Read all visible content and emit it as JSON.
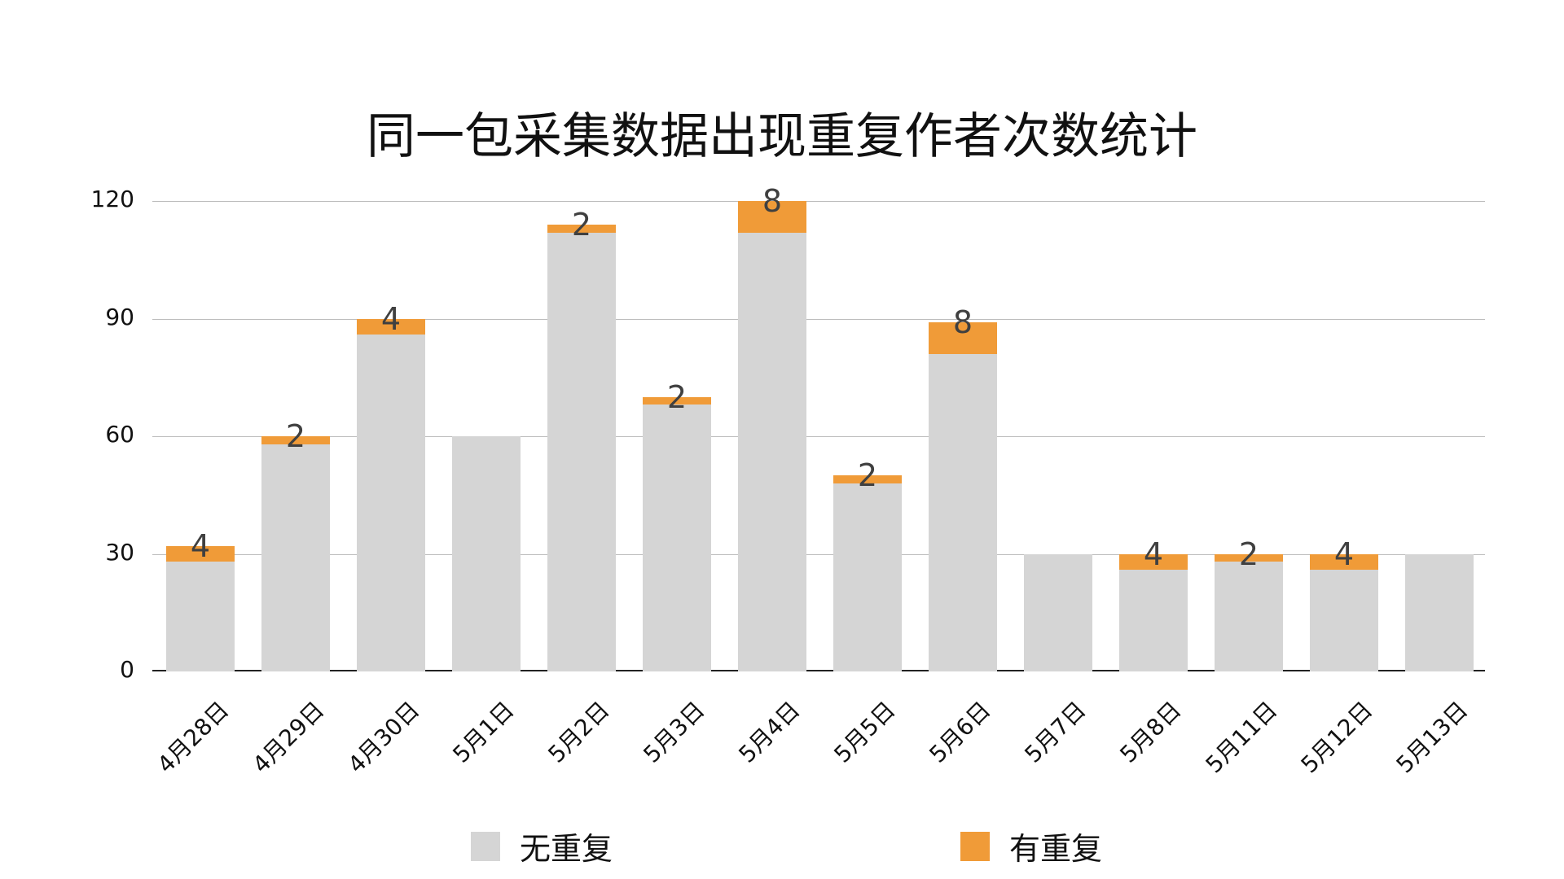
{
  "chart_data": {
    "type": "bar",
    "stacked": true,
    "title": "同一包采集数据出现重复作者次数统计",
    "xlabel": "",
    "ylabel": "",
    "ylim": [
      0,
      120
    ],
    "yticks": [
      0,
      30,
      60,
      90,
      120
    ],
    "grid": true,
    "legend_position": "bottom",
    "categories": [
      "4月28日",
      "4月29日",
      "4月30日",
      "5月1日",
      "5月2日",
      "5月3日",
      "5月4日",
      "5月5日",
      "5月6日",
      "5月7日",
      "5月8日",
      "5月11日",
      "5月12日",
      "5月13日"
    ],
    "series": [
      {
        "name": "无重复",
        "color": "#d5d5d5",
        "values": [
          28,
          58,
          86,
          60,
          112,
          68,
          112,
          48,
          81,
          30,
          26,
          28,
          26,
          30
        ]
      },
      {
        "name": "有重复",
        "color": "#f09b38",
        "values": [
          4,
          2,
          4,
          0,
          2,
          2,
          8,
          2,
          8,
          0,
          4,
          2,
          4,
          0
        ]
      }
    ],
    "data_labels": [
      "4",
      "2",
      "4",
      "",
      "2",
      "2",
      "8",
      "2",
      "8",
      "",
      "4",
      "2",
      "4",
      ""
    ]
  },
  "legend": [
    {
      "label": "无重复",
      "color": "#d5d5d5"
    },
    {
      "label": "有重复",
      "color": "#f09b38"
    }
  ]
}
